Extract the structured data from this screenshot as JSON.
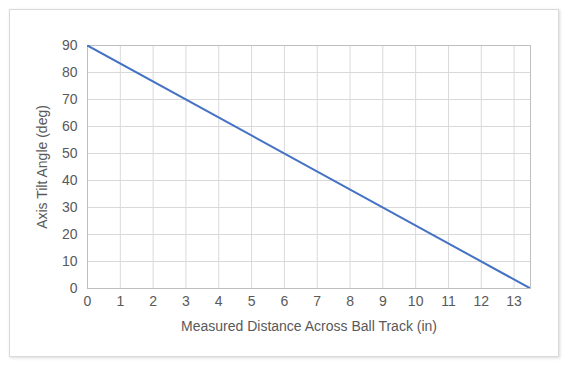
{
  "chart_data": {
    "type": "line",
    "x_label": "Measured Distance Across Ball Track (in)",
    "y_label": "Axis Tilt Angle (deg)",
    "x": [
      0,
      13.5
    ],
    "values": [
      90,
      0
    ],
    "color": "#4472c4",
    "xlim": [
      0,
      13.5
    ],
    "xticks": [
      0,
      1,
      2,
      3,
      4,
      5,
      6,
      7,
      8,
      9,
      10,
      11,
      12,
      13
    ],
    "ylim": [
      0,
      90
    ],
    "yticks": [
      0,
      10,
      20,
      30,
      40,
      50,
      60,
      70,
      80,
      90
    ],
    "grid": true
  }
}
